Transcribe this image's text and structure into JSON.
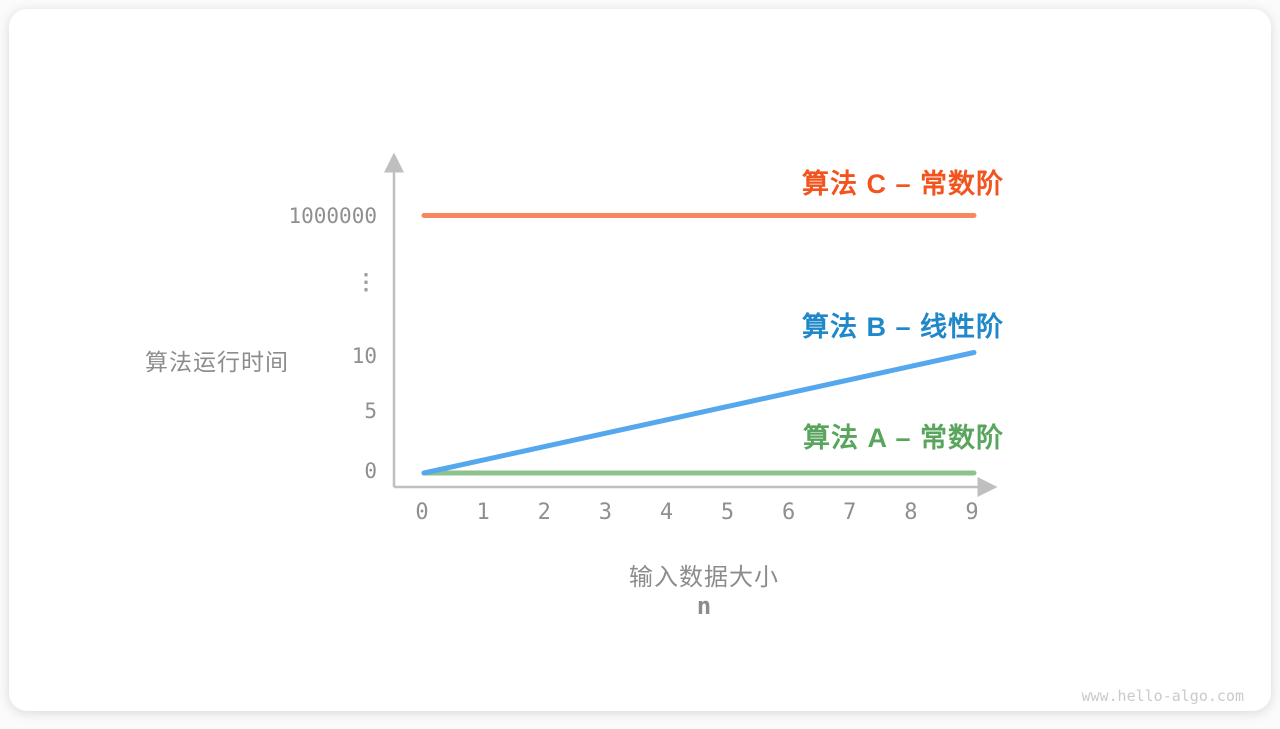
{
  "watermark": "www.hello-algo.com",
  "chart_data": {
    "type": "line",
    "title": "",
    "y_axis": {
      "title": "算法运行时间",
      "ticks": [
        "1000000",
        "⋮",
        "10",
        "5",
        "0"
      ],
      "has_break": true,
      "range_note": "broken axis: 0–10 linear, then break to 1000000"
    },
    "x_axis": {
      "title": "输入数据大小",
      "subtitle": "n",
      "ticks": [
        "0",
        "1",
        "2",
        "3",
        "4",
        "5",
        "6",
        "7",
        "8",
        "9"
      ],
      "range": [
        0,
        9
      ]
    },
    "series": [
      {
        "id": "C",
        "label": "算法 C – 常数阶",
        "line_color": "#F8875F",
        "label_color": "#F3541E",
        "points": [
          [
            0,
            1000000
          ],
          [
            9,
            1000000
          ]
        ]
      },
      {
        "id": "B",
        "label": "算法 B – 线性阶",
        "line_color": "#55A8ED",
        "label_color": "#2088C8",
        "points": [
          [
            0,
            0
          ],
          [
            9,
            10
          ]
        ]
      },
      {
        "id": "A",
        "label": "算法 A – 常数阶",
        "line_color": "#8DC28E",
        "label_color": "#5AA55E",
        "points": [
          [
            0,
            0
          ],
          [
            9,
            0
          ]
        ]
      }
    ],
    "colors": {
      "axis": "#BFBFBF",
      "tick_text": "#8F8F8F",
      "axis_title": "#8C8C8C",
      "watermark": "#C9CACB"
    },
    "legend_position": "right-of-each-line",
    "grid": false
  }
}
